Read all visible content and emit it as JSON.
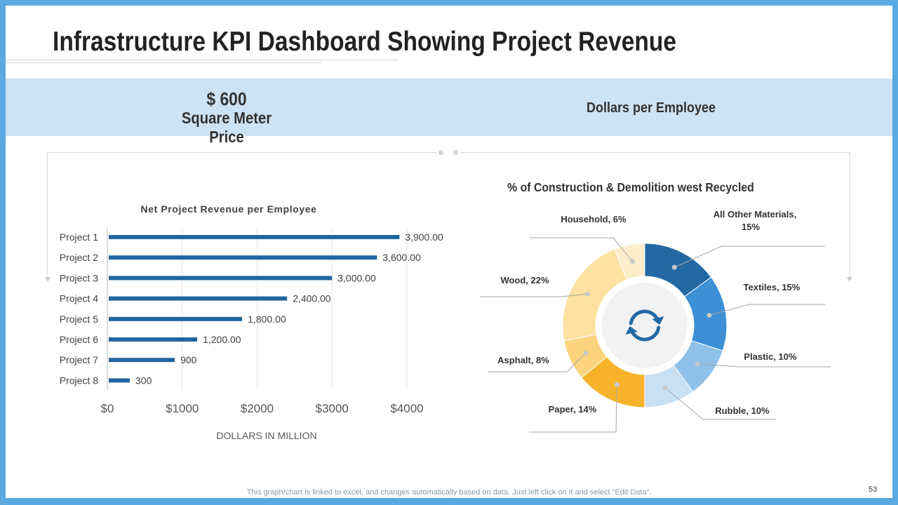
{
  "page": {
    "title": "Infrastructure KPI Dashboard Showing Project Revenue",
    "kpi_left_value": "$ 600",
    "kpi_left_label": "Square Meter Price",
    "kpi_right_label": "Dollars per Employee",
    "footnote": "This graph/chart is linked to excel, and changes automatically based on data. Just left click on it and select “Edit Data”.",
    "page_number": "53",
    "accent_color": "#5aa9e3",
    "banner_color": "#cde2f3"
  },
  "chart_data": [
    {
      "type": "bar",
      "orientation": "horizontal",
      "title": "Net Project Revenue per Employee",
      "xlabel": "DOLLARS IN MILLION",
      "ylabel": "",
      "categories": [
        "Project 1",
        "Project 2",
        "Project 3",
        "Project 4",
        "Project 5",
        "Project 6",
        "Project 7",
        "Project 8"
      ],
      "values": [
        3900,
        3600,
        3000,
        2400,
        1800,
        1200,
        900,
        300
      ],
      "data_labels": [
        "3,900.00",
        "3,600.00",
        "3,000.00",
        "2,400.00",
        "1,800.00",
        "1,200.00",
        "900",
        "300"
      ],
      "xlim": [
        0,
        4000
      ],
      "xticks": [
        0,
        1000,
        2000,
        3000,
        4000
      ],
      "xtick_labels": [
        "$0",
        "$1000",
        "$2000",
        "$3000",
        "$4000"
      ],
      "grid": true,
      "bar_color": "#2266a0"
    },
    {
      "type": "pie",
      "style": "donut",
      "title": "% of Construction & Demolition west Recycled",
      "slices": [
        {
          "label": "All Other Materials, 15%",
          "value": 15,
          "color": "#2269a4"
        },
        {
          "label": "Textiles, 15%",
          "value": 15,
          "color": "#3d8fd6"
        },
        {
          "label": "Plastic, 10%",
          "value": 10,
          "color": "#8fc0e8"
        },
        {
          "label": "Rubble, 10%",
          "value": 10,
          "color": "#c9e0f3"
        },
        {
          "label": "Paper, 14%",
          "value": 14,
          "color": "#f6b32a"
        },
        {
          "label": "Asphalt, 8%",
          "value": 8,
          "color": "#fcd47e"
        },
        {
          "label": "Wood, 22%",
          "value": 22,
          "color": "#fde2a2"
        },
        {
          "label": "Household, 6%",
          "value": 6,
          "color": "#fdeecb"
        }
      ],
      "center_icon": "refresh-cycle-icon"
    }
  ]
}
